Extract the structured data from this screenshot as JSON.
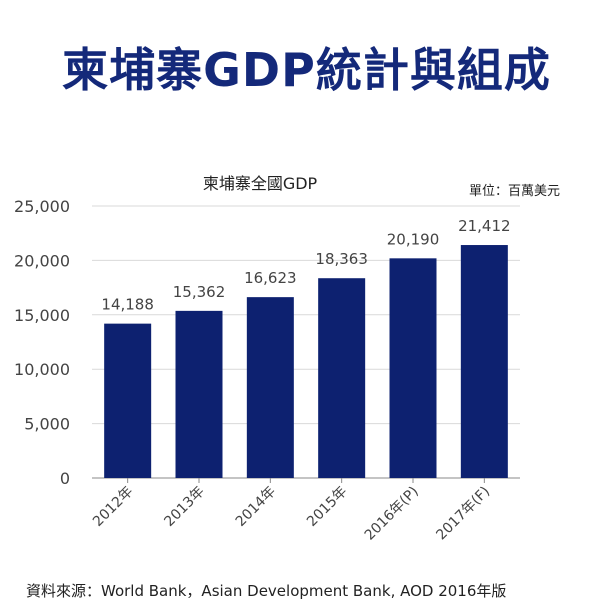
{
  "headline": "柬埔寨GDP統計與組成",
  "source_note": "資料來源：World Bank，Asian Development Bank, AOD 2016年版",
  "chart_data": {
    "type": "bar",
    "title": "柬埔寨全國GDP",
    "unit_label": "單位：百萬美元",
    "categories": [
      "2012年",
      "2013年",
      "2014年",
      "2015年",
      "2016年(P)",
      "2017年(F)"
    ],
    "values": [
      14188,
      15362,
      16623,
      18363,
      20190,
      21412
    ],
    "value_labels": [
      "14,188",
      "15,362",
      "16,623",
      "18,363",
      "20,190",
      "21,412"
    ],
    "yticks": [
      "0",
      "5,000",
      "10,000",
      "15,000",
      "20,000",
      "25,000"
    ],
    "ylim": [
      0,
      25000
    ],
    "grid": true,
    "bar_color": "#0d2170",
    "grid_color": "#d9d9d9",
    "axis_color": "#888888"
  }
}
